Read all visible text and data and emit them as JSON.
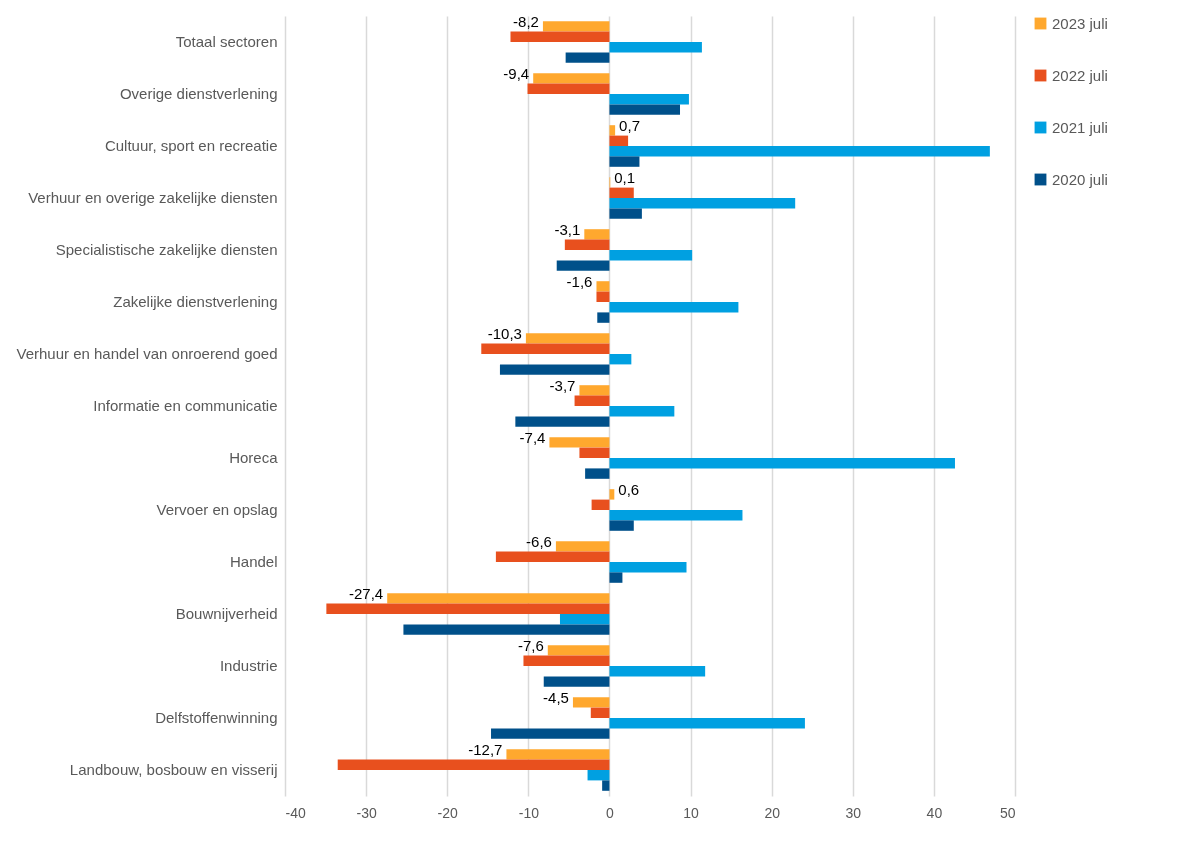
{
  "chart_data": {
    "type": "bar",
    "orientation": "horizontal",
    "categories": [
      "Totaal sectoren",
      "Overige dienstverlening",
      "Cultuur, sport en recreatie",
      "Verhuur en overige zakelijke diensten",
      "Specialistische zakelijke diensten",
      "Zakelijke dienstverlening",
      "Verhuur en handel van onroerend goed",
      "Informatie en communicatie",
      "Horeca",
      "Vervoer en opslag",
      "Handel",
      "Bouwnijverheid",
      "Industrie",
      "Delfstoffenwinning",
      "Landbouw, bosbouw en visserij"
    ],
    "series": [
      {
        "name": "2023 juli",
        "color": "#ffa82e",
        "values": [
          -8.2,
          -9.4,
          0.7,
          0.1,
          -3.1,
          -1.6,
          -10.3,
          -3.7,
          -7.4,
          0.6,
          -6.6,
          -27.4,
          -7.6,
          -4.5,
          -12.7
        ],
        "value_labels": [
          "-8,2",
          "-9,4",
          "0,7",
          "0,1",
          "-3,1",
          "-1,6",
          "-10,3",
          "-3,7",
          "-7,4",
          "0,6",
          "-6,6",
          "-27,4",
          "-7,6",
          "-4,5",
          "-12,7"
        ]
      },
      {
        "name": "2022 juli",
        "color": "#e8501e",
        "values": [
          -12.2,
          -10.1,
          2.3,
          3.0,
          -5.5,
          -1.6,
          -15.8,
          -4.3,
          -3.7,
          -2.2,
          -14.0,
          -34.9,
          -10.6,
          -2.3,
          -33.5
        ]
      },
      {
        "name": "2021 juli",
        "color": "#00a0e1",
        "values": [
          11.4,
          9.8,
          46.9,
          22.9,
          10.2,
          15.9,
          2.7,
          8.0,
          42.6,
          16.4,
          9.5,
          -6.1,
          11.8,
          24.1,
          -2.7
        ]
      },
      {
        "name": "2020 juli",
        "color": "#00508a",
        "values": [
          -5.4,
          8.7,
          3.7,
          4.0,
          -6.5,
          -1.5,
          -13.5,
          -11.6,
          -3.0,
          3.0,
          1.6,
          -25.4,
          -8.1,
          -14.6,
          -0.9
        ]
      }
    ],
    "xlim": [
      -40,
      50
    ],
    "xticks": [
      -40,
      -30,
      -20,
      -10,
      0,
      10,
      20,
      30,
      40,
      50
    ],
    "grid": "x",
    "legend": "right"
  }
}
